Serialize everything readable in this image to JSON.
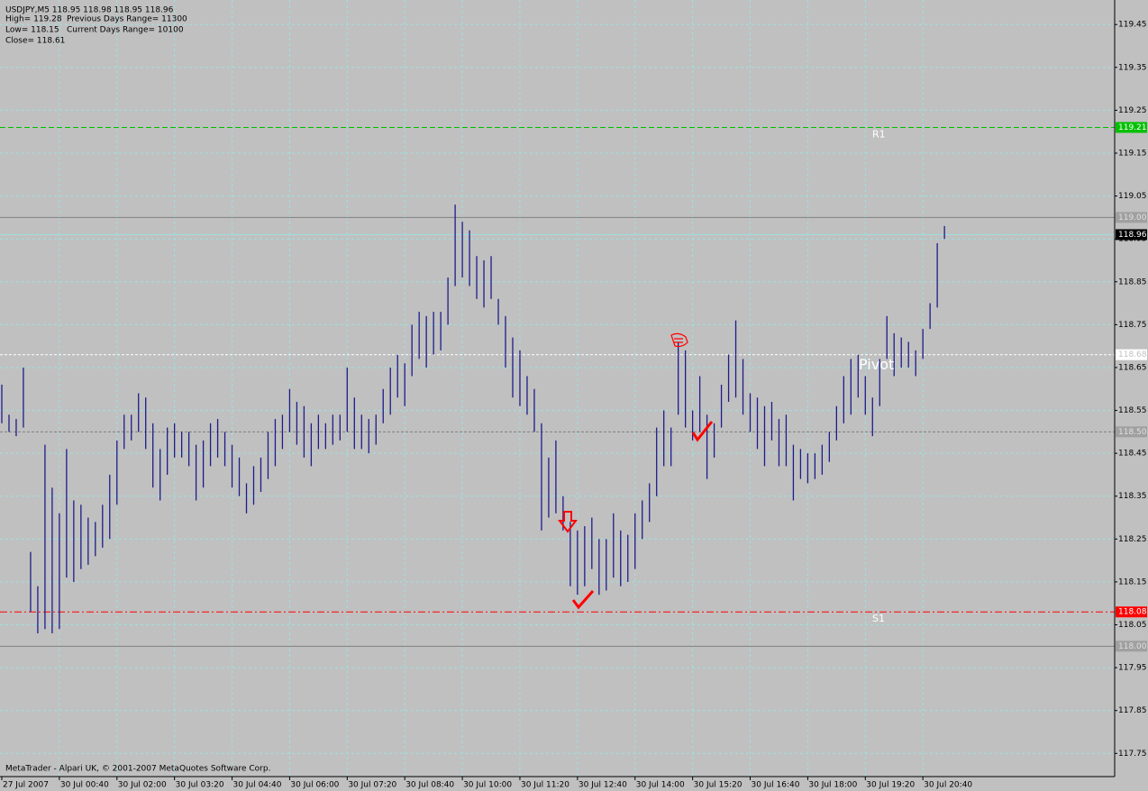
{
  "chart_data": {
    "type": "ohlc",
    "header": {
      "symbol": "USDJPY,M5  118.95 118.98 118.95 118.96",
      "high": "High= 119.28",
      "prev_range": "Previous Days Range= 11300",
      "low": "Low= 118.15",
      "cur_range": "Current Days Range= 10100",
      "close": "Close= 118.61"
    },
    "footer": "MetaTrader - Alpari UK, © 2001-2007 MetaQuotes Software Corp.",
    "color": "#1c1c8c",
    "high": [
      118.61,
      118.54,
      118.53,
      118.65,
      118.22,
      118.14,
      118.47,
      118.37,
      118.31,
      118.46,
      118.34,
      118.33,
      118.3,
      118.29,
      118.33,
      118.4,
      118.48,
      118.54,
      118.54,
      118.59,
      118.58,
      118.52,
      118.46,
      118.51,
      118.52,
      118.5,
      118.5,
      118.47,
      118.48,
      118.52,
      118.53,
      118.5,
      118.47,
      118.44,
      118.38,
      118.42,
      118.44,
      118.5,
      118.53,
      118.54,
      118.6,
      118.57,
      118.56,
      118.52,
      118.54,
      118.52,
      118.54,
      118.54,
      118.65,
      118.58,
      118.54,
      118.53,
      118.54,
      118.6,
      118.65,
      118.68,
      118.66,
      118.75,
      118.78,
      118.77,
      118.78,
      118.78,
      118.86,
      119.03,
      118.99,
      118.97,
      118.91,
      118.9,
      118.91,
      118.81,
      118.77,
      118.72,
      118.69,
      118.63,
      118.6,
      118.52,
      118.44,
      118.48,
      118.35,
      118.29,
      118.27,
      118.28,
      118.3,
      118.25,
      118.25,
      118.31,
      118.27,
      118.26,
      118.31,
      118.34,
      118.38,
      118.51,
      118.55,
      118.51,
      118.71,
      118.69,
      118.55,
      118.63,
      118.54,
      118.52,
      118.61,
      118.68,
      118.76,
      118.67,
      118.59,
      118.58,
      118.56,
      118.57,
      118.53,
      118.54,
      118.47,
      118.46,
      118.45,
      118.45,
      118.47,
      118.5,
      118.56,
      118.63,
      118.67,
      118.68,
      118.63,
      118.58,
      118.67,
      118.77,
      118.73,
      118.72,
      118.71,
      118.69,
      118.74,
      118.8,
      118.94,
      118.98
    ],
    "low": [
      118.52,
      118.5,
      118.49,
      118.51,
      118.08,
      118.03,
      118.04,
      118.03,
      118.04,
      118.16,
      118.15,
      118.18,
      118.19,
      118.21,
      118.23,
      118.25,
      118.33,
      118.46,
      118.48,
      118.5,
      118.46,
      118.37,
      118.34,
      118.4,
      118.44,
      118.44,
      118.42,
      118.34,
      118.37,
      118.42,
      118.44,
      118.42,
      118.37,
      118.35,
      118.31,
      118.33,
      118.36,
      118.39,
      118.42,
      118.46,
      118.5,
      118.47,
      118.44,
      118.42,
      118.46,
      118.46,
      118.47,
      118.48,
      118.5,
      118.46,
      118.46,
      118.45,
      118.47,
      118.52,
      118.54,
      118.58,
      118.56,
      118.63,
      118.67,
      118.65,
      118.68,
      118.69,
      118.75,
      118.84,
      118.86,
      118.84,
      118.81,
      118.79,
      118.81,
      118.75,
      118.65,
      118.58,
      118.56,
      118.54,
      118.5,
      118.27,
      118.3,
      118.31,
      118.27,
      118.14,
      118.12,
      118.14,
      118.18,
      118.12,
      118.13,
      118.16,
      118.14,
      118.15,
      118.18,
      118.25,
      118.29,
      118.35,
      118.42,
      118.42,
      118.54,
      118.51,
      118.48,
      118.5,
      118.39,
      118.44,
      118.51,
      118.57,
      118.58,
      118.54,
      118.5,
      118.46,
      118.42,
      118.48,
      118.42,
      118.42,
      118.34,
      118.39,
      118.38,
      118.39,
      118.4,
      118.43,
      118.48,
      118.52,
      118.54,
      118.58,
      118.54,
      118.49,
      118.56,
      118.67,
      118.63,
      118.65,
      118.65,
      118.63,
      118.67,
      118.74,
      118.79,
      118.95
    ],
    "xlim": [
      -0.25,
      154.4
    ],
    "xticks": [
      {
        "value": 0,
        "label": "27 Jul 2007"
      },
      {
        "value": 8,
        "label": "30 Jul 00:40"
      },
      {
        "value": 16,
        "label": "30 Jul 02:00"
      },
      {
        "value": 24,
        "label": "30 Jul 03:20"
      },
      {
        "value": 32,
        "label": "30 Jul 04:40"
      },
      {
        "value": 40,
        "label": "30 Jul 06:00"
      },
      {
        "value": 48,
        "label": "30 Jul 07:20"
      },
      {
        "value": 56,
        "label": "30 Jul 08:40"
      },
      {
        "value": 64,
        "label": "30 Jul 10:00"
      },
      {
        "value": 72,
        "label": "30 Jul 11:20"
      },
      {
        "value": 80,
        "label": "30 Jul 12:40"
      },
      {
        "value": 88,
        "label": "30 Jul 14:00"
      },
      {
        "value": 96,
        "label": "30 Jul 15:20"
      },
      {
        "value": 104,
        "label": "30 Jul 16:40"
      },
      {
        "value": 112,
        "label": "30 Jul 18:00"
      },
      {
        "value": 120,
        "label": "30 Jul 19:20"
      },
      {
        "value": 128,
        "label": "30 Jul 20:40"
      }
    ],
    "ylim": [
      117.696,
      119.503
    ],
    "yticks": [
      119.45,
      119.35,
      119.25,
      119.15,
      119.05,
      118.95,
      118.85,
      118.75,
      118.65,
      118.55,
      118.45,
      118.35,
      118.25,
      118.15,
      118.05,
      117.95,
      117.85,
      117.75
    ],
    "grid": true,
    "levels": [
      {
        "value": 119.21,
        "label": "119.21",
        "name": "R1",
        "color": "#00c000",
        "dash": "6 3",
        "fill": "#00c000",
        "text": "#ffffff"
      },
      {
        "value": 119.0,
        "label": "119.00",
        "color": "#808080",
        "dash": "none",
        "fill": "#a0a0a0",
        "text": "#e0e0e0"
      },
      {
        "value": 118.96,
        "label": "118.96",
        "color": "#ffffff",
        "dash": "none",
        "fill": "#000000",
        "text": "#ffffff",
        "faint": true
      },
      {
        "value": 118.68,
        "label": "118.68",
        "name": "Pivot",
        "color": "#ffffff",
        "dash": "3 2",
        "fill": "#ffffff",
        "text": "#c0c0c0"
      },
      {
        "value": 118.5,
        "label": "118.50",
        "color": "#808080",
        "dash": "3 2",
        "fill": "#a0a0a0",
        "text": "#e0e0e0"
      },
      {
        "value": 118.08,
        "label": "118.08",
        "name": "S1",
        "color": "#ff0000",
        "dash": "8 3 2 3",
        "fill": "#ff0000",
        "text": "#ffffff"
      },
      {
        "value": 118.0,
        "label": "118.00",
        "color": "#808080",
        "dash": "none",
        "fill": "#a0a0a0",
        "text": "#e0e0e0"
      }
    ]
  }
}
